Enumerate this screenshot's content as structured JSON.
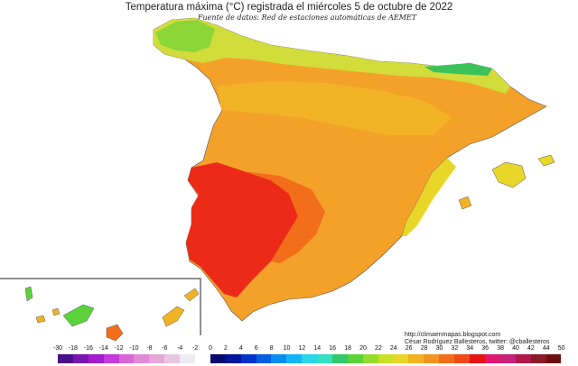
{
  "map": {
    "title": "Temperatura máxima (°C) registrada el miércoles 5 de octubre de 2022",
    "subtitle": "Fuente de datos: Red de estaciones automáticas de AEMET",
    "credits": {
      "url": "http://climaenmapas.blogspot.com",
      "author": "César Rodríguez Ballesteros, twitter: @cballesteros"
    }
  },
  "legend": {
    "ticks": [
      "-30",
      "-18",
      "-16",
      "-14",
      "-12",
      "-10",
      "-8",
      "-6",
      "-4",
      "-2",
      "0",
      "2",
      "4",
      "6",
      "8",
      "10",
      "12",
      "14",
      "16",
      "18",
      "20",
      "22",
      "24",
      "26",
      "28",
      "30",
      "32",
      "34",
      "36",
      "38",
      "40",
      "42",
      "44",
      "50"
    ],
    "colors": [
      "#4b0f8a",
      "#7a16b0",
      "#a31ccf",
      "#c63ad9",
      "#d866d6",
      "#e08bd8",
      "#e5a8d8",
      "#e8c6e0",
      "#ececf3",
      "#ffffff",
      "#0a0a6e",
      "#00159e",
      "#0033cc",
      "#0060e0",
      "#0a8cf0",
      "#14b4f5",
      "#2ad6e8",
      "#34e0c0",
      "#33c86a",
      "#5bd23a",
      "#96dc2c",
      "#c8e128",
      "#e8d628",
      "#f0b422",
      "#f29420",
      "#f26e1a",
      "#f04a16",
      "#e61414",
      "#e0186e",
      "#c8227a",
      "#b0184a",
      "#8a1a28",
      "#6e1010"
    ]
  }
}
